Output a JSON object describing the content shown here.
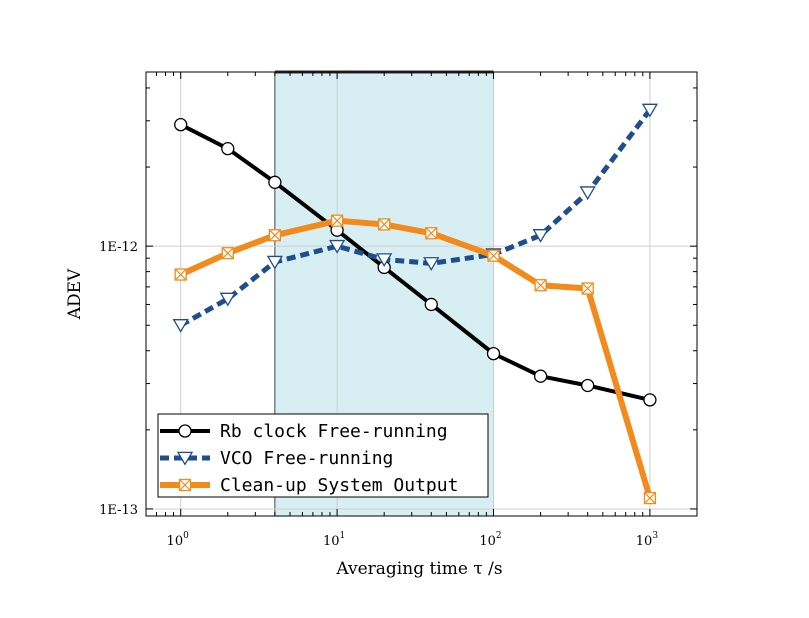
{
  "chart_data": {
    "type": "line",
    "xlabel": "Averaging time τ /s",
    "ylabel": "ADEV",
    "x_scale": "log",
    "y_scale": "log",
    "xlim": [
      0.6,
      2000
    ],
    "ylim": [
      9.4e-14,
      4.6e-12
    ],
    "x_ticks": [
      {
        "value": 1,
        "base": "10",
        "exp": "0"
      },
      {
        "value": 10,
        "base": "10",
        "exp": "1"
      },
      {
        "value": 100,
        "base": "10",
        "exp": "2"
      },
      {
        "value": 1000,
        "base": "10",
        "exp": "3"
      }
    ],
    "y_ticks": [
      {
        "value": 1e-13,
        "label": "1E-13"
      },
      {
        "value": 1e-12,
        "label": "1E-12"
      }
    ],
    "shaded_region": {
      "x_start": 4,
      "x_end": 100,
      "color": "#c9e9ef"
    },
    "grid": true,
    "legend_position": "bottom-left",
    "series": [
      {
        "name": "Rb clock Free-running",
        "color": "#000000",
        "marker": "circle",
        "style": "solid",
        "x": [
          1,
          2,
          4,
          10,
          20,
          40,
          100,
          200,
          400,
          1000
        ],
        "y": [
          2.9e-12,
          2.35e-12,
          1.75e-12,
          1.15e-12,
          8.3e-13,
          6e-13,
          3.9e-13,
          3.2e-13,
          2.95e-13,
          2.6e-13
        ]
      },
      {
        "name": "VCO Free-running",
        "color": "#1f4e8c",
        "marker": "triangle-down",
        "style": "dashed",
        "x": [
          1,
          2,
          4,
          10,
          20,
          40,
          100,
          200,
          400,
          1000
        ],
        "y": [
          5e-13,
          6.3e-13,
          8.7e-13,
          1e-12,
          8.9e-13,
          8.6e-13,
          9.3e-13,
          1.1e-12,
          1.6e-12,
          3.3e-12
        ]
      },
      {
        "name": "Clean-up System Output",
        "color": "#f28a1c",
        "marker": "square-x",
        "style": "solid",
        "x": [
          1,
          2,
          4,
          10,
          20,
          40,
          100,
          200,
          400,
          1000
        ],
        "y": [
          7.8e-13,
          9.4e-13,
          1.1e-12,
          1.25e-12,
          1.21e-12,
          1.12e-12,
          9.2e-13,
          7.1e-13,
          6.9e-13,
          1.1e-13
        ]
      }
    ]
  }
}
